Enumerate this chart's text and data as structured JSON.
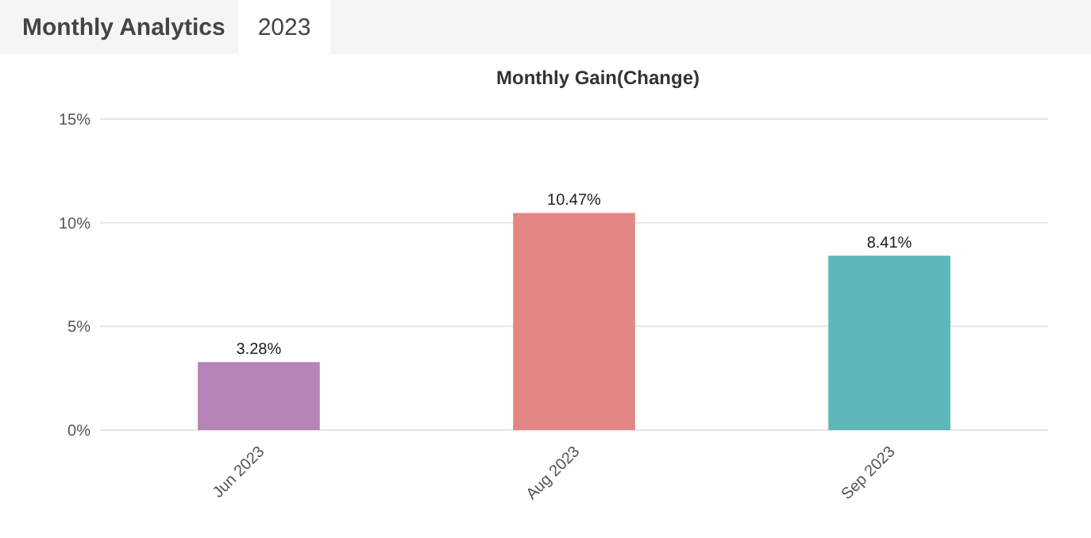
{
  "chart_data": {
    "type": "bar",
    "title": "Monthly Gain(Change)",
    "annotations": [
      "Monthly Analytics",
      "2023"
    ],
    "categories": [
      "Jun 2023",
      "Aug 2023",
      "Sep 2023"
    ],
    "values": [
      3.28,
      10.47,
      8.41
    ],
    "colors": [
      "#b585b7",
      "#e38683",
      "#5db7b8"
    ],
    "value_labels": [
      "3.28%",
      "10.47%",
      "8.41%"
    ],
    "ylim": [
      0,
      15
    ],
    "yticks": [
      {
        "value": 0,
        "label": "0%"
      },
      {
        "value": 5,
        "label": "5%"
      },
      {
        "value": 10,
        "label": "10%"
      },
      {
        "value": 15,
        "label": "15%"
      }
    ],
    "grid": "y"
  }
}
